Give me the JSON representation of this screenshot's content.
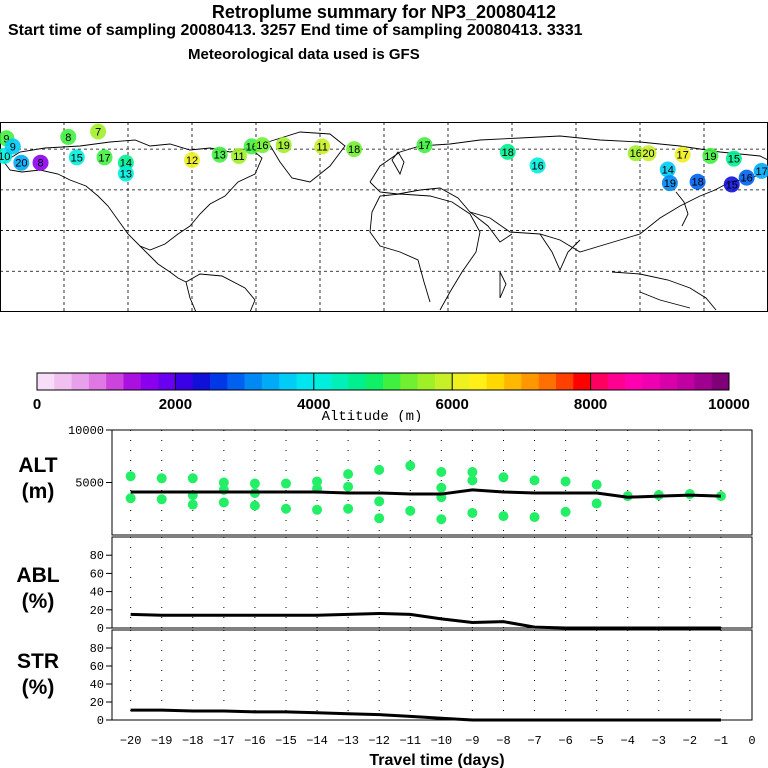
{
  "header": {
    "title": "Retroplume summary for NP3_20080412",
    "sampling_line": "Start time of sampling 20080413.  3257     End time of sampling 20080413.  3331",
    "met_line": "Meteorological data used is GFS"
  },
  "colorbar": {
    "label": "Altitude (m)",
    "ticks": [
      "0",
      "2000",
      "4000",
      "6000",
      "8000",
      "10000"
    ],
    "colors": [
      "#f7ddf7",
      "#f0c0f0",
      "#e8a0ea",
      "#df78e2",
      "#cc44dd",
      "#aa11e0",
      "#8a00ee",
      "#6a00f0",
      "#3a00e6",
      "#1010d8",
      "#0038e8",
      "#0060f0",
      "#0088f4",
      "#00aaf6",
      "#00ccf6",
      "#00e6ee",
      "#00eedd",
      "#00f0b8",
      "#00f090",
      "#10f066",
      "#40f040",
      "#70f030",
      "#a0f028",
      "#c8f028",
      "#eef020",
      "#fff018",
      "#ffd800",
      "#ffb800",
      "#ff9800",
      "#ff7000",
      "#ff4000",
      "#ff0000",
      "#ff0060",
      "#ff0090",
      "#ff00b0",
      "#ee00b0",
      "#d800a8",
      "#c000a0",
      "#a00090",
      "#800078"
    ]
  },
  "map": {
    "plume_labels": [
      {
        "text": "7",
        "lon": -134,
        "lat": 73,
        "color": "#a0f028"
      },
      {
        "text": "9",
        "lon": -177,
        "lat": 68,
        "color": "#40f040"
      },
      {
        "text": "8",
        "lon": -148,
        "lat": 69,
        "color": "#40f040"
      },
      {
        "text": "10",
        "lon": -178,
        "lat": 55,
        "color": "#00eedd"
      },
      {
        "text": "9",
        "lon": -174,
        "lat": 62,
        "color": "#00ccf6"
      },
      {
        "text": "20",
        "lon": -170,
        "lat": 50,
        "color": "#00aaf6"
      },
      {
        "text": "8",
        "lon": -161,
        "lat": 50,
        "color": "#8a00ee"
      },
      {
        "text": "15",
        "lon": -144,
        "lat": 54,
        "color": "#00eedd"
      },
      {
        "text": "17",
        "lon": -131,
        "lat": 54,
        "color": "#40f040"
      },
      {
        "text": "14",
        "lon": -121,
        "lat": 50,
        "color": "#00f090"
      },
      {
        "text": "13",
        "lon": -121,
        "lat": 42,
        "color": "#00eedd"
      },
      {
        "text": "12",
        "lon": -90,
        "lat": 52,
        "color": "#eef020"
      },
      {
        "text": "13",
        "lon": -77,
        "lat": 56,
        "color": "#40f040"
      },
      {
        "text": "11",
        "lon": -68,
        "lat": 55,
        "color": "#a0f028"
      },
      {
        "text": "16",
        "lon": -62,
        "lat": 62,
        "color": "#40f040"
      },
      {
        "text": "16",
        "lon": -57,
        "lat": 63,
        "color": "#70f030"
      },
      {
        "text": "19",
        "lon": -47,
        "lat": 63,
        "color": "#a0f028"
      },
      {
        "text": "11",
        "lon": -29,
        "lat": 62,
        "color": "#c8f028"
      },
      {
        "text": "18",
        "lon": -14,
        "lat": 60,
        "color": "#70f030"
      },
      {
        "text": "17",
        "lon": 19,
        "lat": 63,
        "color": "#40f040"
      },
      {
        "text": "18",
        "lon": 58,
        "lat": 58,
        "color": "#00f090"
      },
      {
        "text": "16",
        "lon": 72,
        "lat": 48,
        "color": "#00eedd"
      },
      {
        "text": "16",
        "lon": 118,
        "lat": 57,
        "color": "#a0f028"
      },
      {
        "text": "20",
        "lon": 124,
        "lat": 57,
        "color": "#c8f028"
      },
      {
        "text": "17",
        "lon": 140,
        "lat": 56,
        "color": "#eef020"
      },
      {
        "text": "19",
        "lon": 153,
        "lat": 55,
        "color": "#40f040"
      },
      {
        "text": "15",
        "lon": 164,
        "lat": 53,
        "color": "#00f090"
      },
      {
        "text": "14",
        "lon": 133,
        "lat": 45,
        "color": "#00ccf6"
      },
      {
        "text": "19",
        "lon": 134,
        "lat": 35,
        "color": "#0088f4"
      },
      {
        "text": "18",
        "lon": 147,
        "lat": 36,
        "color": "#0060f0"
      },
      {
        "text": "17",
        "lon": 177,
        "lat": 44,
        "color": "#00aaf6"
      },
      {
        "text": "16",
        "lon": 170,
        "lat": 39,
        "color": "#0060f0"
      },
      {
        "text": "15",
        "lon": 163,
        "lat": 34,
        "color": "#1010d8"
      }
    ]
  },
  "chart_data": [
    {
      "type": "scatter",
      "name": "ALT",
      "ylabel": "ALT\n(m)",
      "ylabel_lines": [
        "ALT",
        "(m)"
      ],
      "ylim": [
        0,
        10000
      ],
      "yticks": [
        "5000",
        "10000"
      ],
      "xlim": [
        -20.6,
        0
      ],
      "x": [
        -20,
        -19,
        -18,
        -17,
        -16,
        -15,
        -14,
        -13,
        -12,
        -11,
        -10,
        -9,
        -8,
        -7,
        -6,
        -5,
        -4,
        -3,
        -2,
        -1
      ],
      "median_line": [
        4100,
        4100,
        4100,
        4100,
        4100,
        4100,
        4100,
        4000,
        4000,
        3900,
        3900,
        4300,
        4100,
        4000,
        4000,
        4000,
        3600,
        3700,
        3800,
        3700
      ],
      "points": [
        {
          "x": -20,
          "y": 5600
        },
        {
          "x": -20,
          "y": 3500
        },
        {
          "x": -19,
          "y": 5400
        },
        {
          "x": -19,
          "y": 3400
        },
        {
          "x": -18,
          "y": 5400
        },
        {
          "x": -18,
          "y": 3800
        },
        {
          "x": -18,
          "y": 2900
        },
        {
          "x": -17,
          "y": 5000
        },
        {
          "x": -17,
          "y": 4300
        },
        {
          "x": -17,
          "y": 3100
        },
        {
          "x": -16,
          "y": 4900
        },
        {
          "x": -16,
          "y": 4000
        },
        {
          "x": -16,
          "y": 2800
        },
        {
          "x": -15,
          "y": 4900
        },
        {
          "x": -15,
          "y": 2500
        },
        {
          "x": -14,
          "y": 5100
        },
        {
          "x": -14,
          "y": 4400
        },
        {
          "x": -14,
          "y": 2400
        },
        {
          "x": -13,
          "y": 5800
        },
        {
          "x": -13,
          "y": 4600
        },
        {
          "x": -13,
          "y": 2500
        },
        {
          "x": -12,
          "y": 6200
        },
        {
          "x": -12,
          "y": 3200
        },
        {
          "x": -12,
          "y": 1600
        },
        {
          "x": -11,
          "y": 6600
        },
        {
          "x": -11,
          "y": 2300
        },
        {
          "x": -10,
          "y": 6000
        },
        {
          "x": -10,
          "y": 4500
        },
        {
          "x": -10,
          "y": 3600
        },
        {
          "x": -10,
          "y": 1500
        },
        {
          "x": -9,
          "y": 6000
        },
        {
          "x": -9,
          "y": 5200
        },
        {
          "x": -9,
          "y": 2100
        },
        {
          "x": -8,
          "y": 5500
        },
        {
          "x": -8,
          "y": 1800
        },
        {
          "x": -7,
          "y": 5200
        },
        {
          "x": -7,
          "y": 1700
        },
        {
          "x": -6,
          "y": 5100
        },
        {
          "x": -6,
          "y": 2200
        },
        {
          "x": -5,
          "y": 4800
        },
        {
          "x": -5,
          "y": 3000
        },
        {
          "x": -4,
          "y": 3700
        },
        {
          "x": -3,
          "y": 3800
        },
        {
          "x": -2,
          "y": 3900
        },
        {
          "x": -1,
          "y": 3700
        }
      ],
      "point_color": "#22ee66"
    },
    {
      "type": "line",
      "name": "ABL",
      "ylabel_lines": [
        "ABL",
        "(%)"
      ],
      "ylim": [
        0,
        100
      ],
      "yticks": [
        "0",
        "20",
        "40",
        "60",
        "80"
      ],
      "xlim": [
        -20.6,
        0
      ],
      "x": [
        -20,
        -19,
        -18,
        -17,
        -16,
        -15,
        -14,
        -13,
        -12,
        -11,
        -10,
        -9,
        -8,
        -7,
        -6,
        -5,
        -4,
        -3,
        -2,
        -1
      ],
      "values": [
        15,
        14,
        14,
        14,
        14,
        14,
        14,
        15,
        16,
        15,
        10,
        6,
        7,
        1,
        0,
        0,
        0,
        0,
        0,
        0
      ]
    },
    {
      "type": "line",
      "name": "STR",
      "ylabel_lines": [
        "STR",
        "(%)"
      ],
      "ylim": [
        0,
        100
      ],
      "yticks": [
        "0",
        "20",
        "40",
        "60",
        "80"
      ],
      "xlim": [
        -20.6,
        0
      ],
      "x": [
        -20,
        -19,
        -18,
        -17,
        -16,
        -15,
        -14,
        -13,
        -12,
        -11,
        -10,
        -9,
        -8,
        -7,
        -6,
        -5,
        -4,
        -3,
        -2,
        -1
      ],
      "values": [
        11,
        11,
        10,
        10,
        9,
        9,
        8,
        7,
        6,
        4,
        2,
        0,
        0,
        0,
        0,
        0,
        0,
        0,
        0,
        0
      ],
      "xlabel": "Travel time (days)",
      "xticks": [
        "−20",
        "−19",
        "−18",
        "−17",
        "−16",
        "−15",
        "−14",
        "−13",
        "−12",
        "−11",
        "−10",
        "−9",
        "−8",
        "−7",
        "−6",
        "−5",
        "−4",
        "−3",
        "−2",
        "−1",
        "0"
      ]
    }
  ]
}
